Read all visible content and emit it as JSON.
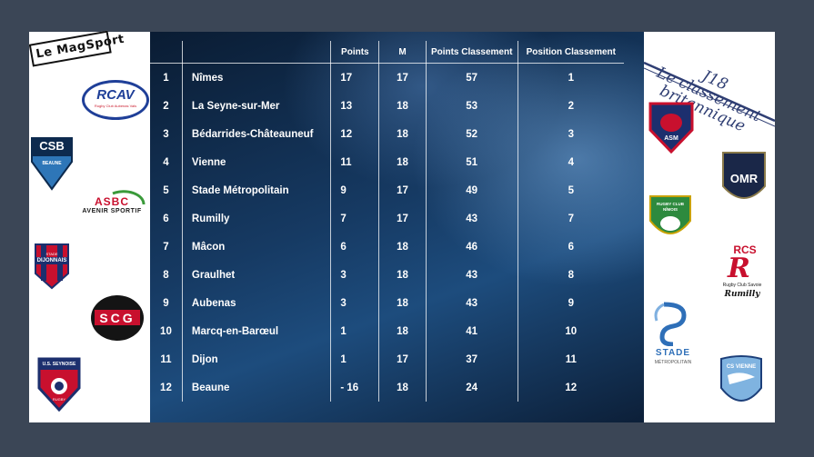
{
  "table": {
    "headers": {
      "rank": "",
      "team": "",
      "points": "Points",
      "matches": "M",
      "points_classement": "Points Classement",
      "position_classement": "Position Classement"
    },
    "rows": [
      {
        "rank": "1",
        "team": "Nîmes",
        "points": "17",
        "matches": "17",
        "points_classement": "57",
        "position_classement": "1"
      },
      {
        "rank": "2",
        "team": "La Seyne-sur-Mer",
        "points": "13",
        "matches": "18",
        "points_classement": "53",
        "position_classement": "2"
      },
      {
        "rank": "3",
        "team": "Bédarrides-Châteauneuf",
        "points": "12",
        "matches": "18",
        "points_classement": "52",
        "position_classement": "3"
      },
      {
        "rank": "4",
        "team": "Vienne",
        "points": "11",
        "matches": "18",
        "points_classement": "51",
        "position_classement": "4"
      },
      {
        "rank": "5",
        "team": "Stade Métropolitain",
        "points": "9",
        "matches": "17",
        "points_classement": "49",
        "position_classement": "5"
      },
      {
        "rank": "6",
        "team": "Rumilly",
        "points": "7",
        "matches": "17",
        "points_classement": "43",
        "position_classement": "7"
      },
      {
        "rank": "7",
        "team": "Mâcon",
        "points": "6",
        "matches": "18",
        "points_classement": "46",
        "position_classement": "6"
      },
      {
        "rank": "8",
        "team": "Graulhet",
        "points": "3",
        "matches": "18",
        "points_classement": "43",
        "position_classement": "8"
      },
      {
        "rank": "9",
        "team": "Aubenas",
        "points": "3",
        "matches": "18",
        "points_classement": "43",
        "position_classement": "9"
      },
      {
        "rank": "10",
        "team": "Marcq-en-Barœul",
        "points": "1",
        "matches": "18",
        "points_classement": "41",
        "position_classement": "10"
      },
      {
        "rank": "11",
        "team": "Dijon",
        "points": "1",
        "matches": "17",
        "points_classement": "37",
        "position_classement": "11"
      },
      {
        "rank": "12",
        "team": "Beaune",
        "points": "- 16",
        "matches": "18",
        "points_classement": "24",
        "position_classement": "12"
      }
    ]
  },
  "title": {
    "line1": "J18",
    "line2": "Le classement",
    "line3": "britannique"
  },
  "logos": {
    "magsport": "Le MagSport",
    "rcav": "RCAV",
    "rcav_sub": "Rugby Club Aubenas Vals",
    "csb": "CSB",
    "csb_sub": "BEAUNE",
    "asbc": "ASBC",
    "asbc_sub": "AVENIR SPORTIF",
    "dijon": "DIJONNAIS",
    "dijon_top": "STADE",
    "scg": "SCG",
    "seyne": "RUGBY",
    "seyne_top": "U.S. SEYNOISE",
    "asm": "ASM",
    "omr": "OMR",
    "nimes": "RUGBY CLUB NÎMOIS",
    "rcs": "RCS",
    "rcs_sub": "Rugby Club Savoie",
    "rcs_script": "Rumilly",
    "stade": "STADE",
    "stade_sub": "MÉTROPOLITAIN",
    "cs_vienne": "CS VIENNE"
  },
  "colors": {
    "background": "#3b4656",
    "board_dark": "#0a1c33",
    "board_light": "#1d4c7d",
    "title_blue": "#2f3e73"
  }
}
